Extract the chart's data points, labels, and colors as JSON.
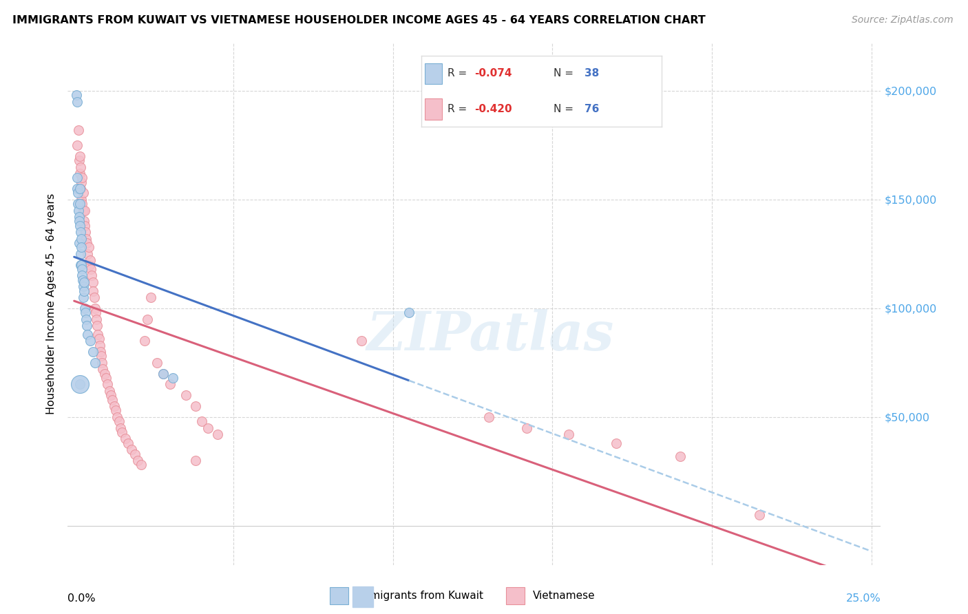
{
  "title": "IMMIGRANTS FROM KUWAIT VS VIETNAMESE HOUSEHOLDER INCOME AGES 45 - 64 YEARS CORRELATION CHART",
  "source": "Source: ZipAtlas.com",
  "ylabel": "Householder Income Ages 45 - 64 years",
  "xlim": [
    0.0,
    0.25
  ],
  "ylim": [
    -10000,
    220000
  ],
  "kuwait_R": -0.074,
  "kuwait_N": 38,
  "vietnamese_R": -0.42,
  "vietnamese_N": 76,
  "kuwait_color": "#b8d0ea",
  "kuwait_edge_color": "#7aafd4",
  "vietnamese_color": "#f5bfca",
  "vietnamese_edge_color": "#e8909a",
  "trend_kuwait_color": "#4472C4",
  "trend_viet_color": "#d9607a",
  "dashed_color": "#aacce8",
  "watermark": "ZIPatlas",
  "kuwait_x": [
    0.0008,
    0.001,
    0.001,
    0.001,
    0.0012,
    0.0012,
    0.0013,
    0.0015,
    0.0015,
    0.0015,
    0.0017,
    0.0018,
    0.0018,
    0.002,
    0.002,
    0.002,
    0.0022,
    0.0022,
    0.0023,
    0.0025,
    0.0025,
    0.0027,
    0.0028,
    0.0028,
    0.003,
    0.003,
    0.0032,
    0.0035,
    0.0038,
    0.004,
    0.0042,
    0.005,
    0.006,
    0.0065,
    0.028,
    0.031,
    0.105,
    0.0018
  ],
  "kuwait_y": [
    198000,
    160000,
    195000,
    155000,
    153000,
    148000,
    145000,
    142000,
    140000,
    130000,
    138000,
    155000,
    148000,
    125000,
    120000,
    135000,
    132000,
    128000,
    120000,
    118000,
    115000,
    113000,
    110000,
    105000,
    108000,
    112000,
    100000,
    98000,
    95000,
    92000,
    88000,
    85000,
    80000,
    75000,
    70000,
    68000,
    98000,
    65000
  ],
  "viet_x": [
    0.001,
    0.0013,
    0.0015,
    0.0017,
    0.0018,
    0.002,
    0.002,
    0.0022,
    0.0023,
    0.0025,
    0.0025,
    0.0028,
    0.0028,
    0.003,
    0.0032,
    0.0033,
    0.0035,
    0.0038,
    0.004,
    0.0042,
    0.0045,
    0.0048,
    0.005,
    0.0052,
    0.0055,
    0.0058,
    0.006,
    0.0063,
    0.0065,
    0.0068,
    0.007,
    0.0072,
    0.0075,
    0.0078,
    0.008,
    0.0082,
    0.0085,
    0.0088,
    0.009,
    0.0095,
    0.01,
    0.0105,
    0.011,
    0.0115,
    0.012,
    0.0125,
    0.013,
    0.0135,
    0.014,
    0.0145,
    0.015,
    0.016,
    0.017,
    0.018,
    0.019,
    0.02,
    0.021,
    0.022,
    0.023,
    0.024,
    0.026,
    0.028,
    0.03,
    0.035,
    0.038,
    0.04,
    0.042,
    0.045,
    0.038,
    0.09,
    0.13,
    0.142,
    0.155,
    0.17,
    0.19,
    0.215
  ],
  "viet_y": [
    175000,
    182000,
    168000,
    162000,
    170000,
    165000,
    155000,
    158000,
    150000,
    148000,
    160000,
    145000,
    153000,
    140000,
    138000,
    145000,
    135000,
    132000,
    130000,
    125000,
    128000,
    120000,
    122000,
    118000,
    115000,
    112000,
    108000,
    105000,
    100000,
    98000,
    95000,
    92000,
    88000,
    86000,
    83000,
    80000,
    78000,
    75000,
    72000,
    70000,
    68000,
    65000,
    62000,
    60000,
    58000,
    55000,
    53000,
    50000,
    48000,
    45000,
    43000,
    40000,
    38000,
    35000,
    33000,
    30000,
    28000,
    85000,
    95000,
    105000,
    75000,
    70000,
    65000,
    60000,
    55000,
    48000,
    45000,
    42000,
    30000,
    85000,
    50000,
    45000,
    42000,
    38000,
    32000,
    5000
  ]
}
